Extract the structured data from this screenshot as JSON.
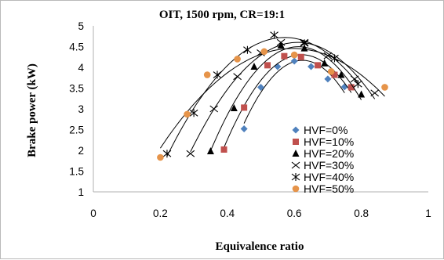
{
  "chart_data": {
    "type": "scatter",
    "title": "OIT, 1500 rpm, CR=19:1",
    "xlabel": "Equivalence ratio",
    "ylabel": "Brake power (kW)",
    "xlim": [
      0,
      1
    ],
    "ylim": [
      1,
      5
    ],
    "xticks": [
      "0",
      "0.2",
      "0.4",
      "0.6",
      "0.8",
      "1"
    ],
    "yticks": [
      "1",
      "1.5",
      "2",
      "2.5",
      "3",
      "3.5",
      "4",
      "4.5",
      "5"
    ],
    "grid": false,
    "legend_position": "right",
    "trendlines": true,
    "series": [
      {
        "name": "HVF=0%",
        "marker": "diamond",
        "color": "#4f81bd",
        "x": [
          0.45,
          0.5,
          0.55,
          0.6,
          0.65,
          0.7,
          0.75
        ],
        "y": [
          2.52,
          3.52,
          4.02,
          4.15,
          4.02,
          3.72,
          3.53
        ]
      },
      {
        "name": "HVF=10%",
        "marker": "square",
        "color": "#c0504d",
        "x": [
          0.39,
          0.45,
          0.52,
          0.57,
          0.62,
          0.67,
          0.72,
          0.77
        ],
        "y": [
          2.02,
          3.03,
          4.05,
          4.27,
          4.25,
          4.05,
          3.82,
          3.52
        ]
      },
      {
        "name": "HVF=20%",
        "marker": "triangle",
        "color": "#000000",
        "x": [
          0.35,
          0.42,
          0.48,
          0.56,
          0.63,
          0.69,
          0.74,
          0.8
        ],
        "y": [
          1.98,
          3.02,
          4.02,
          4.53,
          4.46,
          4.1,
          3.82,
          3.35
        ]
      },
      {
        "name": "HVF=30%",
        "marker": "x",
        "color": "#000000",
        "x": [
          0.29,
          0.36,
          0.43,
          0.5,
          0.56,
          0.63,
          0.7,
          0.78,
          0.84
        ],
        "y": [
          1.92,
          3.0,
          3.78,
          4.35,
          4.6,
          4.6,
          4.28,
          3.72,
          3.38
        ]
      },
      {
        "name": "HVF=40%",
        "marker": "star",
        "color": "#000000",
        "x": [
          0.22,
          0.3,
          0.37,
          0.46,
          0.54,
          0.63,
          0.72,
          0.79
        ],
        "y": [
          1.92,
          2.9,
          3.82,
          4.42,
          4.78,
          4.58,
          4.22,
          3.6
        ]
      },
      {
        "name": "HVF=50%",
        "marker": "circle",
        "color": "#e6944a",
        "x": [
          0.2,
          0.28,
          0.34,
          0.43,
          0.51,
          0.6,
          0.71,
          0.87
        ],
        "y": [
          1.83,
          2.87,
          3.82,
          4.2,
          4.38,
          4.3,
          3.9,
          3.52
        ]
      }
    ]
  }
}
